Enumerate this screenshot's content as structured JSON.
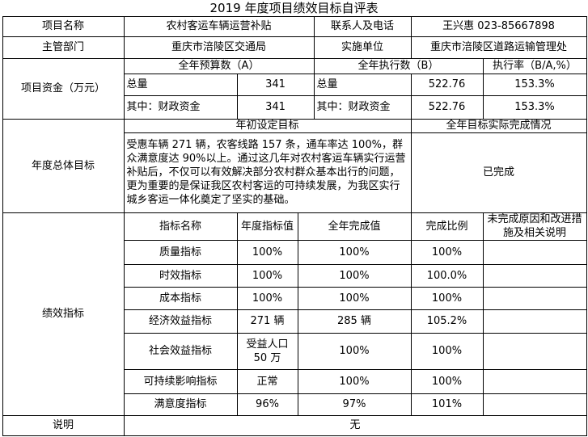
{
  "title": "2019 年度项目绩效目标自评表",
  "project": {
    "name_label": "项目名称",
    "name": "农村客运车辆运营补贴",
    "contact_label": "联系人及电话",
    "contact": "王兴惠 023-85667898",
    "dept_label": "主管部门",
    "dept": "重庆市涪陵区交通局",
    "impl_label": "实施单位",
    "impl": "重庆市涪陵区道路运输管理处"
  },
  "funds": {
    "label": "项目资金（万元）",
    "budget_header": "全年预算数（A）",
    "actual_header": "全年执行数（B）",
    "rate_header": "执行率（B/A,%）",
    "rows": [
      [
        "总量",
        341,
        "总量",
        522.76,
        "153.3%"
      ],
      [
        "其中：财政资金",
        341,
        "其中：财政资金",
        522.76,
        "153.3%"
      ]
    ]
  },
  "goals": {
    "label": "年度总体目标",
    "set_header": "年初设定目标",
    "actual_header": "全年目标实际完成情况",
    "set_text": "受惠车辆 271 辆，农客线路 157 条，通车率达 100%，群众满意度达 90%以上。通过这几年对农村客运车辆实行运营补贴后，不仅可以有效解决部分农村群众基本出行的问题，更为重要的是保证我区农村客运的可持续发展，为我区实行城乡客运一体化奠定了坚实的基础。",
    "actual_text": "已完成"
  },
  "performance": {
    "label": "绩效指标",
    "headers": [
      "指标名称",
      "年度指标值",
      "全年完成值",
      "完成比例",
      "未完成原因和改进措施及相关说明"
    ],
    "rows": [
      [
        "质量指标",
        "100%",
        "100%",
        "100%"
      ],
      [
        "时效指标",
        "100%",
        "100%",
        "100.0%"
      ],
      [
        "成本指标",
        "100%",
        "100%",
        "100%"
      ],
      [
        "经济效益指标",
        "271 辆",
        "285 辆",
        "105.2%"
      ],
      [
        "社会效益指标",
        "受益人口50 万",
        "100%",
        "100%"
      ],
      [
        "可持续影响指标",
        "正常",
        "100%",
        "100%"
      ],
      [
        "满意度指标",
        "96%",
        "97%",
        "101%"
      ]
    ]
  },
  "note": {
    "label": "说明",
    "text": "无"
  }
}
